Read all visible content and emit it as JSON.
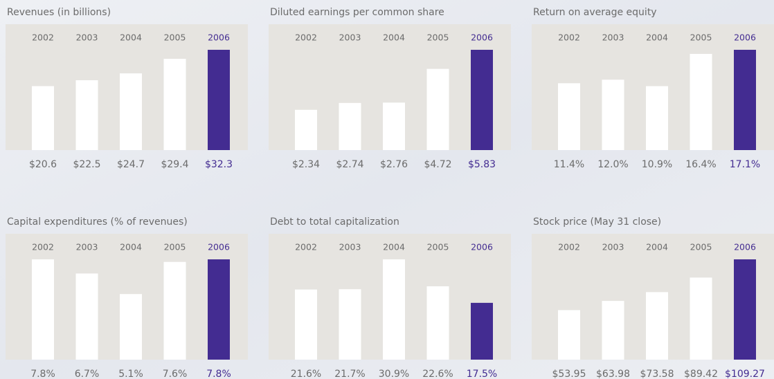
{
  "chart_data": [
    {
      "type": "bar",
      "title": "Revenues (in billions)",
      "categories": [
        "2002",
        "2003",
        "2004",
        "2005",
        "2006"
      ],
      "values": [
        20.6,
        22.5,
        24.7,
        29.4,
        32.3
      ],
      "value_labels": [
        "$20.6",
        "$22.5",
        "$24.7",
        "$29.4",
        "$32.3"
      ],
      "colors": [
        "#ffffff",
        "#ffffff",
        "#ffffff",
        "#ffffff",
        "#432c91"
      ]
    },
    {
      "type": "bar",
      "title": "Diluted earnings per common share",
      "categories": [
        "2002",
        "2003",
        "2004",
        "2005",
        "2006"
      ],
      "values": [
        2.34,
        2.74,
        2.76,
        4.72,
        5.83
      ],
      "value_labels": [
        "$2.34",
        "$2.74",
        "$2.76",
        "$4.72",
        "$5.83"
      ],
      "colors": [
        "#ffffff",
        "#ffffff",
        "#ffffff",
        "#ffffff",
        "#432c91"
      ]
    },
    {
      "type": "bar",
      "title": "Return on average equity",
      "categories": [
        "2002",
        "2003",
        "2004",
        "2005",
        "2006"
      ],
      "values": [
        11.4,
        12.0,
        10.9,
        16.4,
        17.1
      ],
      "value_labels": [
        "11.4%",
        "12.0%",
        "10.9%",
        "16.4%",
        "17.1%"
      ],
      "colors": [
        "#ffffff",
        "#ffffff",
        "#ffffff",
        "#ffffff",
        "#432c91"
      ]
    },
    {
      "type": "bar",
      "title": "Capital expenditures (% of revenues)",
      "categories": [
        "2002",
        "2003",
        "2004",
        "2005",
        "2006"
      ],
      "values": [
        7.8,
        6.7,
        5.1,
        7.6,
        7.8
      ],
      "value_labels": [
        "7.8%",
        "6.7%",
        "5.1%",
        "7.6%",
        "7.8%"
      ],
      "colors": [
        "#ffffff",
        "#ffffff",
        "#ffffff",
        "#ffffff",
        "#432c91"
      ]
    },
    {
      "type": "bar",
      "title": "Debt to total capitalization",
      "categories": [
        "2002",
        "2003",
        "2004",
        "2005",
        "2006"
      ],
      "values": [
        21.6,
        21.7,
        30.9,
        22.6,
        17.5
      ],
      "value_labels": [
        "21.6%",
        "21.7%",
        "30.9%",
        "22.6%",
        "17.5%"
      ],
      "colors": [
        "#ffffff",
        "#ffffff",
        "#ffffff",
        "#ffffff",
        "#432c91"
      ]
    },
    {
      "type": "bar",
      "title": "Stock price (May 31 close)",
      "categories": [
        "2002",
        "2003",
        "2004",
        "2005",
        "2006"
      ],
      "values": [
        53.95,
        63.98,
        73.58,
        89.42,
        109.27
      ],
      "value_labels": [
        "$53.95",
        "$63.98",
        "$73.58",
        "$89.42",
        "$109.27"
      ],
      "colors": [
        "#ffffff",
        "#ffffff",
        "#ffffff",
        "#ffffff",
        "#432c91"
      ]
    }
  ]
}
